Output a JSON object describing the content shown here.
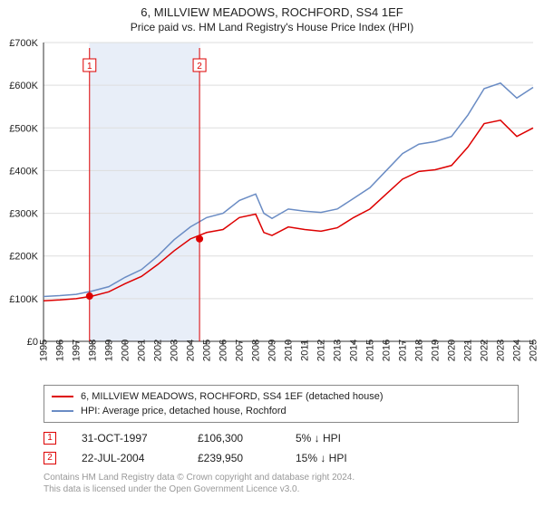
{
  "title": "6, MILLVIEW MEADOWS, ROCHFORD, SS4 1EF",
  "subtitle": "Price paid vs. HM Land Registry's House Price Index (HPI)",
  "chart": {
    "type": "line",
    "background_color": "#ffffff",
    "grid_color": "#dddddd",
    "axis_color": "#333333",
    "shaded_band_color": "#e8eef8",
    "shaded_band": {
      "start_year": 1997.8,
      "end_year": 2004.6
    },
    "xlim": [
      1995,
      2025
    ],
    "ylim": [
      0,
      700000
    ],
    "ytick_step": 100000,
    "y_ticks": [
      "£0",
      "£100K",
      "£200K",
      "£300K",
      "£400K",
      "£500K",
      "£600K",
      "£700K"
    ],
    "x_ticks": [
      1995,
      1996,
      1997,
      1998,
      1999,
      2000,
      2001,
      2002,
      2003,
      2004,
      2005,
      2006,
      2007,
      2008,
      2009,
      2010,
      2011,
      2012,
      2013,
      2014,
      2015,
      2016,
      2017,
      2018,
      2019,
      2020,
      2021,
      2022,
      2023,
      2024,
      2025
    ],
    "marker_line_color": "#dd0000",
    "marker_dot_color": "#dd0000",
    "label_fontsize": 11,
    "series": [
      {
        "name": "hpi",
        "color": "#6a8cc4",
        "width": 1.5,
        "points": [
          [
            1995,
            105
          ],
          [
            1996,
            107
          ],
          [
            1997,
            110
          ],
          [
            1998,
            118
          ],
          [
            1999,
            128
          ],
          [
            2000,
            150
          ],
          [
            2001,
            168
          ],
          [
            2002,
            200
          ],
          [
            2003,
            238
          ],
          [
            2004,
            268
          ],
          [
            2005,
            290
          ],
          [
            2006,
            300
          ],
          [
            2007,
            330
          ],
          [
            2008,
            345
          ],
          [
            2008.5,
            300
          ],
          [
            2009,
            288
          ],
          [
            2010,
            310
          ],
          [
            2011,
            305
          ],
          [
            2012,
            302
          ],
          [
            2013,
            310
          ],
          [
            2014,
            335
          ],
          [
            2015,
            360
          ],
          [
            2016,
            400
          ],
          [
            2017,
            440
          ],
          [
            2018,
            462
          ],
          [
            2019,
            468
          ],
          [
            2020,
            480
          ],
          [
            2021,
            530
          ],
          [
            2022,
            592
          ],
          [
            2023,
            605
          ],
          [
            2024,
            570
          ],
          [
            2025,
            595
          ]
        ]
      },
      {
        "name": "price-paid",
        "color": "#dd0000",
        "width": 1.5,
        "points": [
          [
            1995,
            95
          ],
          [
            1996,
            97
          ],
          [
            1997,
            100
          ],
          [
            1998,
            106
          ],
          [
            1999,
            116
          ],
          [
            2000,
            135
          ],
          [
            2001,
            152
          ],
          [
            2002,
            180
          ],
          [
            2003,
            212
          ],
          [
            2004,
            240
          ],
          [
            2005,
            255
          ],
          [
            2006,
            262
          ],
          [
            2007,
            290
          ],
          [
            2008,
            298
          ],
          [
            2008.5,
            255
          ],
          [
            2009,
            248
          ],
          [
            2010,
            268
          ],
          [
            2011,
            262
          ],
          [
            2012,
            258
          ],
          [
            2013,
            266
          ],
          [
            2014,
            290
          ],
          [
            2015,
            310
          ],
          [
            2016,
            345
          ],
          [
            2017,
            380
          ],
          [
            2018,
            398
          ],
          [
            2019,
            402
          ],
          [
            2020,
            412
          ],
          [
            2021,
            455
          ],
          [
            2022,
            510
          ],
          [
            2023,
            518
          ],
          [
            2024,
            480
          ],
          [
            2025,
            500
          ]
        ]
      }
    ],
    "sale_markers": [
      {
        "n": "1",
        "year": 1997.82,
        "value": 106
      },
      {
        "n": "2",
        "year": 2004.56,
        "value": 240
      }
    ]
  },
  "legend": {
    "series1": {
      "color": "#dd0000",
      "label": "6, MILLVIEW MEADOWS, ROCHFORD, SS4 1EF (detached house)"
    },
    "series2": {
      "color": "#6a8cc4",
      "label": "HPI: Average price, detached house, Rochford"
    }
  },
  "sales": [
    {
      "n": "1",
      "date": "31-OCT-1997",
      "price": "£106,300",
      "diff": "5% ↓ HPI"
    },
    {
      "n": "2",
      "date": "22-JUL-2004",
      "price": "£239,950",
      "diff": "15% ↓ HPI"
    }
  ],
  "attribution": {
    "line1": "Contains HM Land Registry data © Crown copyright and database right 2024.",
    "line2": "This data is licensed under the Open Government Licence v3.0."
  }
}
